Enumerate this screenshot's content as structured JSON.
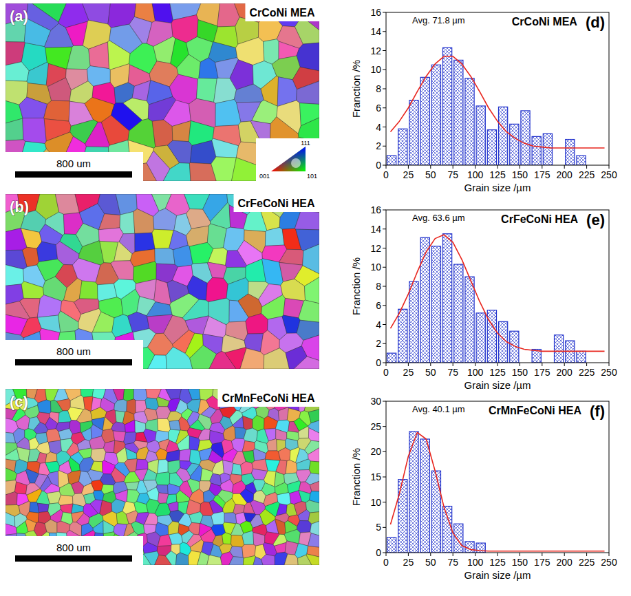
{
  "chart_data": [
    {
      "type": "histogram",
      "title": "CrCoNi MEA",
      "panel_label": "(d)",
      "annotation": "Avg. 71.8 µm",
      "x_label": "Grain size /µm",
      "y_label": "Franction /%",
      "xlim": [
        0,
        250
      ],
      "xticks": [
        0,
        25,
        50,
        75,
        100,
        125,
        150,
        175,
        200,
        225,
        250
      ],
      "ylim": [
        0,
        16
      ],
      "yticks": [
        0,
        2,
        4,
        6,
        8,
        10,
        12,
        14,
        16
      ],
      "series": [
        {
          "type": "histogram",
          "color": "#2233cc",
          "bins": [
            0,
            12.5,
            25,
            37.5,
            50,
            62.5,
            75,
            87.5,
            100,
            112.5,
            125,
            137.5,
            150,
            162.5,
            175,
            187.5,
            200,
            212.5,
            225
          ],
          "values": [
            1.0,
            3.8,
            6.8,
            9.2,
            10.5,
            12.3,
            11.0,
            9.1,
            6.2,
            3.7,
            6.1,
            4.3,
            5.7,
            3.0,
            3.3,
            0,
            2.7,
            1.0
          ]
        },
        {
          "type": "line",
          "color": "#e8261e",
          "x": [
            5,
            15,
            25,
            35,
            45,
            55,
            65,
            75,
            85,
            95,
            105,
            115,
            125,
            135,
            145,
            155,
            165,
            175,
            185,
            195,
            205,
            215,
            225,
            235,
            245
          ],
          "values": [
            3.5,
            4.6,
            6.0,
            7.7,
            9.3,
            10.6,
            11.4,
            11.4,
            10.6,
            9.3,
            7.7,
            6.0,
            4.6,
            3.5,
            2.8,
            2.3,
            2.0,
            1.9,
            1.8,
            1.8,
            1.8,
            1.8,
            1.8,
            1.8,
            1.8
          ]
        }
      ]
    },
    {
      "type": "histogram",
      "title": "CrFeCoNi HEA",
      "panel_label": "(e)",
      "annotation": "Avg. 63.6 µm",
      "x_label": "Grain size /µm",
      "y_label": "Franction /%",
      "xlim": [
        0,
        250
      ],
      "xticks": [
        0,
        25,
        50,
        75,
        100,
        125,
        150,
        175,
        200,
        225,
        250
      ],
      "ylim": [
        0,
        16
      ],
      "yticks": [
        0,
        2,
        4,
        6,
        8,
        10,
        12,
        14,
        16
      ],
      "series": [
        {
          "type": "histogram",
          "color": "#2233cc",
          "bins": [
            0,
            12.5,
            25,
            37.5,
            50,
            62.5,
            75,
            87.5,
            100,
            112.5,
            125,
            137.5,
            150,
            162.5,
            175,
            187.5,
            200,
            212.5,
            225
          ],
          "values": [
            1.0,
            5.6,
            8.5,
            13.1,
            12.2,
            13.5,
            10.3,
            9.0,
            5.2,
            5.5,
            4.3,
            3.3,
            0,
            1.4,
            0,
            2.9,
            2.3,
            1.2
          ]
        },
        {
          "type": "line",
          "color": "#e8261e",
          "x": [
            5,
            15,
            25,
            35,
            45,
            55,
            65,
            75,
            85,
            95,
            105,
            115,
            125,
            135,
            145,
            155,
            165,
            175,
            185,
            195,
            205,
            215,
            225,
            235,
            245
          ],
          "values": [
            3.6,
            5.2,
            7.2,
            9.5,
            11.6,
            13.0,
            13.4,
            12.6,
            10.8,
            8.6,
            6.4,
            4.5,
            3.1,
            2.2,
            1.7,
            1.4,
            1.3,
            1.2,
            1.2,
            1.2,
            1.2,
            1.2,
            1.2,
            1.2,
            1.2
          ]
        }
      ]
    },
    {
      "type": "histogram",
      "title": "CrMnFeCoNi HEA",
      "panel_label": "(f)",
      "annotation": "Avg. 40.1 µm",
      "x_label": "Grain size /µm",
      "y_label": "Franction /%",
      "xlim": [
        0,
        250
      ],
      "xticks": [
        0,
        25,
        50,
        75,
        100,
        125,
        150,
        175,
        200,
        225,
        250
      ],
      "ylim": [
        0,
        30
      ],
      "yticks": [
        0,
        5,
        10,
        15,
        20,
        25,
        30
      ],
      "series": [
        {
          "type": "histogram",
          "color": "#2233cc",
          "bins": [
            0,
            12.5,
            25,
            37.5,
            50,
            62.5,
            75,
            87.5,
            100,
            112.5
          ],
          "values": [
            3.0,
            14.5,
            24.0,
            22.5,
            16.2,
            9.2,
            5.7,
            2.2,
            1.9
          ]
        },
        {
          "type": "line",
          "color": "#e8261e",
          "x": [
            5,
            15,
            25,
            35,
            45,
            55,
            65,
            75,
            85,
            95,
            105,
            115,
            125,
            135,
            145,
            155,
            165,
            175,
            185,
            195,
            205,
            215,
            225,
            235,
            245
          ],
          "values": [
            5.6,
            11.7,
            19.1,
            23.8,
            22.5,
            16.2,
            9.0,
            3.9,
            1.4,
            0.6,
            0.4,
            0.3,
            0.3,
            0.3,
            0.3,
            0.3,
            0.3,
            0.3,
            0.3,
            0.3,
            0.3,
            0.3,
            0.3,
            0.3,
            0.3
          ]
        }
      ]
    }
  ],
  "images": [
    {
      "panel_label": "(a)",
      "title": "CrCoNi MEA",
      "scale_bar": "800 um"
    },
    {
      "panel_label": "(b)",
      "title": "CrFeCoNi HEA",
      "scale_bar": "800 um"
    },
    {
      "panel_label": "(c)",
      "title": "CrMnFeCoNi HEA",
      "scale_bar": "800 um"
    }
  ],
  "ipf_legend": [
    "111",
    "001",
    "101"
  ]
}
